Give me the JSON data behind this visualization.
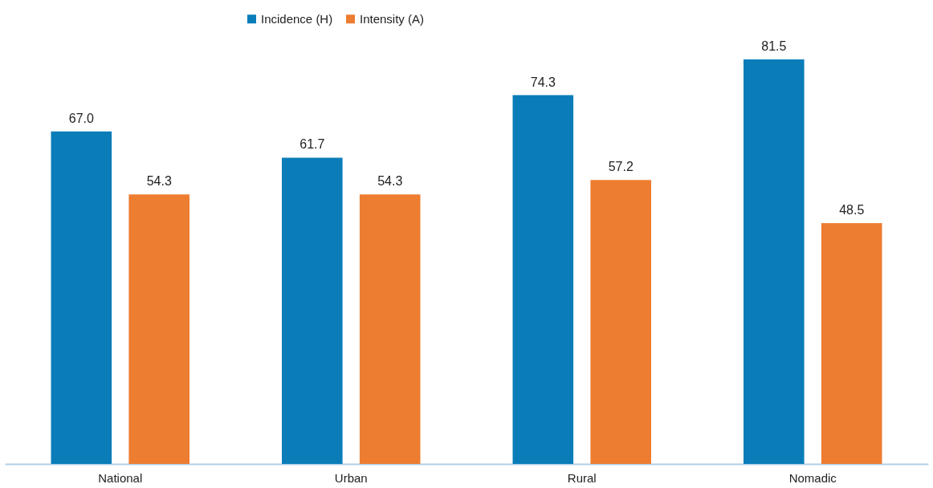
{
  "chart_data": {
    "type": "bar",
    "categories": [
      "National",
      "Urban",
      "Rural",
      "Nomadic"
    ],
    "series": [
      {
        "name": "Incidence (H)",
        "color": "#0a7db9",
        "values": [
          67.0,
          61.7,
          74.3,
          81.5
        ],
        "value_labels": [
          "67.0",
          "61.7",
          "74.3",
          "81.5"
        ]
      },
      {
        "name": "Intensity (A)",
        "color": "#ed7d31",
        "values": [
          54.3,
          54.3,
          57.2,
          48.5
        ],
        "value_labels": [
          "54.3",
          "54.3",
          "57.2",
          "48.5"
        ]
      }
    ],
    "legend": "top",
    "grid": false
  }
}
